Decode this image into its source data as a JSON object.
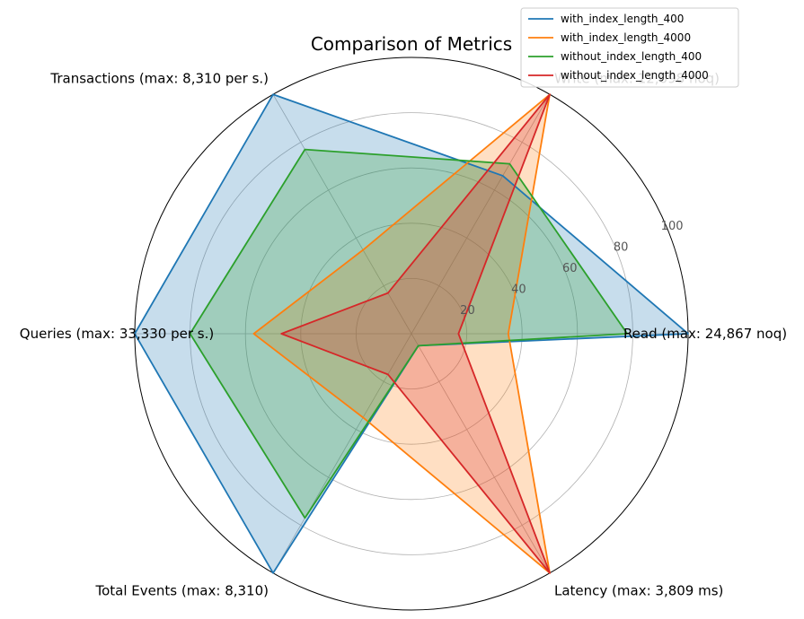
{
  "chart_data": {
    "type": "radar",
    "title": "Comparison of Metrics",
    "axes": [
      "Read (max: 24,867 noq)",
      "Write (max: 12,098 noq)",
      "Transactions (max: 8,310 per s.)",
      "Queries (max: 33,330 per s.)",
      "Total Events (max: 8,310)",
      "Latency (max: 3,809 ms)"
    ],
    "rlim": [
      0,
      100
    ],
    "r_ticks": [
      20,
      40,
      60,
      80,
      100
    ],
    "grid": true,
    "legend_position": "top-right",
    "series": [
      {
        "name": "with_index_length_400",
        "color": "#1f77b4",
        "values": [
          100,
          66,
          100,
          100,
          100,
          5
        ],
        "filled": true
      },
      {
        "name": "with_index_length_4000",
        "color": "#ff7f0e",
        "values": [
          35,
          100,
          35,
          57,
          35,
          100
        ],
        "filled": true
      },
      {
        "name": "without_index_length_400",
        "color": "#2ca02c",
        "values": [
          78,
          71,
          77,
          80,
          77,
          5
        ],
        "filled": true
      },
      {
        "name": "without_index_length_4000",
        "color": "#d62728",
        "values": [
          17,
          100,
          17,
          47,
          17,
          100
        ],
        "filled": true
      }
    ]
  }
}
